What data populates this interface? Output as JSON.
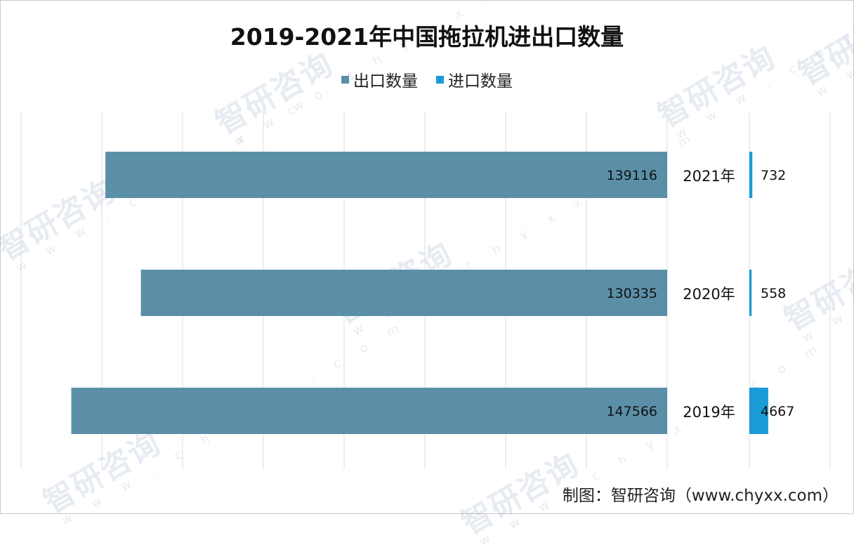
{
  "chart_data": {
    "type": "bar",
    "orientation": "horizontal",
    "title": "2019-2021年中国拖拉机进出口数量",
    "categories": [
      "2021年",
      "2020年",
      "2019年"
    ],
    "series": [
      {
        "name": "出口数量",
        "values": [
          139116,
          130335,
          147566
        ],
        "color": "#5b8fa8"
      },
      {
        "name": "进口数量",
        "values": [
          732,
          558,
          4667
        ],
        "color": "#1a9ad6"
      }
    ],
    "legend_position": "top",
    "grid": true,
    "data_labels": true
  },
  "watermark": {
    "name": "智研咨询",
    "url": "w w w . c h y x x . c o m"
  },
  "source": "制图：智研咨询（www.chyxx.com）"
}
